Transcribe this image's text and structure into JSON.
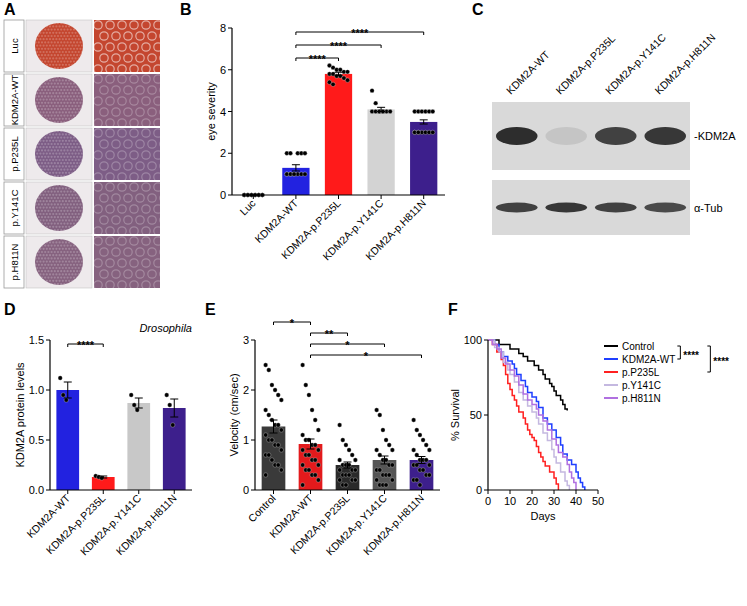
{
  "chart_data": [
    {
      "type": "images",
      "panel": "A",
      "rows": [
        "Luc",
        "KDM2A-WT",
        "p.P235L",
        "p.Y141C",
        "p.H811N"
      ],
      "colors": [
        "#c4462f",
        "#8a5f7d",
        "#7d5d86",
        "#82607f",
        "#86627f"
      ]
    },
    {
      "type": "bar",
      "panel": "B",
      "ylabel": "eye severity",
      "categories": [
        "Luc",
        "KDM2A-WT",
        "KDM2A-p.P235L",
        "KDM2A-p.Y141C",
        "KDM2A-p.H811N"
      ],
      "values": [
        0,
        1.3,
        5.8,
        4.1,
        3.5
      ],
      "errors": [
        0,
        0.15,
        0.08,
        0.1,
        0.1
      ],
      "points": [
        [
          0,
          0,
          0,
          0,
          0,
          0,
          0,
          0,
          0,
          0,
          0,
          0
        ],
        [
          1,
          1,
          1,
          1,
          1,
          1,
          1,
          1,
          1,
          2,
          2,
          2,
          2,
          2
        ],
        [
          6.2,
          6.1,
          6.0,
          6.0,
          5.9,
          5.9,
          5.8,
          5.8,
          5.7,
          5.7,
          5.6,
          5.5,
          5.4,
          5.3
        ],
        [
          5.0,
          4.4,
          4.0,
          4.0,
          4.0,
          4.0,
          4.0,
          4.0,
          4.0,
          4.0
        ],
        [
          4,
          4,
          4,
          4,
          4,
          4,
          3,
          3,
          3,
          3,
          3,
          3,
          3,
          3
        ]
      ],
      "colors": [
        "#000000",
        "#2222e0",
        "#ff1a1a",
        "#d3d3d3",
        "#3d1f8c"
      ],
      "ylim": [
        0,
        8
      ],
      "yticks": [
        0,
        2,
        4,
        6,
        8
      ],
      "annotations": [
        {
          "text": "****",
          "from": "KDM2A-WT",
          "to": "KDM2A-p.P235L"
        },
        {
          "text": "****",
          "from": "KDM2A-WT",
          "to": "KDM2A-p.Y141C"
        },
        {
          "text": "****",
          "from": "KDM2A-WT",
          "to": "KDM2A-p.H811N"
        }
      ]
    },
    {
      "type": "blot",
      "panel": "C",
      "lanes": [
        "KDM2A-WT",
        "KDM2A-p.P235L",
        "KDM2A-p.Y141C",
        "KDM2A-p.H811N"
      ],
      "bands": [
        {
          "label": "-KDM2A",
          "values": [
            0.9,
            0.1,
            0.8,
            0.85
          ]
        },
        {
          "label": "α-Tub",
          "values": [
            0.8,
            0.85,
            0.8,
            0.75
          ]
        }
      ]
    },
    {
      "type": "bar",
      "panel": "D",
      "title": "Drosophila",
      "ylabel": "KDM2A protein levels",
      "categories": [
        "KDM2A-WT",
        "KDM2A-p.P235L",
        "KDM2A-p.Y141C",
        "KDM2A-p.H811N"
      ],
      "values": [
        1.0,
        0.13,
        0.87,
        0.82
      ],
      "errors": [
        0.08,
        0.01,
        0.05,
        0.09
      ],
      "points": [
        [
          1.12,
          0.95,
          0.9
        ],
        [
          0.14,
          0.13,
          0.12
        ],
        [
          0.95,
          0.85,
          0.8
        ],
        [
          0.95,
          0.85,
          0.65
        ]
      ],
      "colors": [
        "#2222e0",
        "#ff1a1a",
        "#c8c8c8",
        "#3d1f8c"
      ],
      "ylim": [
        0,
        1.5
      ],
      "yticks": [
        {
          "value": 0,
          "label": "0.0"
        },
        {
          "value": 0.5,
          "label": "0.5"
        },
        {
          "value": 1,
          "label": "1.0"
        },
        {
          "value": 1.5,
          "label": "1.5"
        }
      ],
      "annotations": [
        {
          "text": "****",
          "from": "KDM2A-WT",
          "to": "KDM2A-p.P235L"
        }
      ]
    },
    {
      "type": "bar",
      "panel": "E",
      "ylabel": "Velocity (cm/sec)",
      "categories": [
        "Control",
        "KDM2A-WT",
        "KDM2A-p.P235L",
        "KDM2A-p.Y141C",
        "KDM2A-p.H811N"
      ],
      "values": [
        1.27,
        0.92,
        0.5,
        0.6,
        0.6
      ],
      "errors": [
        0.13,
        0.1,
        0.06,
        0.08,
        0.07
      ],
      "points": [
        [
          2.5,
          2.4,
          2.1,
          2.0,
          1.9,
          1.8,
          1.6,
          1.5,
          1.4,
          1.3,
          1.3,
          1.2,
          1.1,
          1.0,
          1.0,
          0.9,
          0.9,
          0.8,
          0.7,
          0.7,
          0.6,
          0.5,
          0.5,
          0.4,
          0.3
        ],
        [
          2.5,
          2.1,
          1.9,
          1.6,
          1.4,
          1.2,
          1.1,
          1.0,
          1.0,
          0.9,
          0.9,
          0.8,
          0.8,
          0.7,
          0.7,
          0.6,
          0.6,
          0.5,
          0.5,
          0.4,
          0.4,
          0.3,
          0.3,
          0.2,
          0.1
        ],
        [
          1.3,
          1.0,
          0.9,
          0.8,
          0.7,
          0.6,
          0.6,
          0.5,
          0.5,
          0.5,
          0.4,
          0.4,
          0.4,
          0.3,
          0.3,
          0.3,
          0.2,
          0.2,
          0.2,
          0.1,
          0.1
        ],
        [
          1.6,
          1.5,
          1.2,
          1.0,
          0.9,
          0.8,
          0.8,
          0.7,
          0.6,
          0.6,
          0.5,
          0.5,
          0.4,
          0.4,
          0.3,
          0.3,
          0.3,
          0.2,
          0.2,
          0.1,
          0.1,
          0.1
        ],
        [
          1.4,
          1.2,
          1.1,
          1.0,
          0.9,
          0.8,
          0.8,
          0.7,
          0.6,
          0.6,
          0.6,
          0.5,
          0.5,
          0.5,
          0.4,
          0.4,
          0.3,
          0.3,
          0.2,
          0.2,
          0.1
        ]
      ],
      "colors": [
        "#3a3a3a",
        "#e31a1c",
        "#2a2a2a",
        "#555555",
        "#3d1f8c"
      ],
      "ylim": [
        0,
        3
      ],
      "yticks": [
        0,
        1,
        2,
        3
      ],
      "annotations": [
        {
          "text": "*",
          "from": "KDM2A-WT",
          "to": "KDM2A-p.H811N"
        },
        {
          "text": "*",
          "from": "KDM2A-WT",
          "to": "KDM2A-p.Y141C"
        },
        {
          "text": "**",
          "from": "KDM2A-WT",
          "to": "KDM2A-p.P235L"
        },
        {
          "text": "*",
          "from": "Control",
          "to": "KDM2A-WT"
        }
      ]
    },
    {
      "type": "line",
      "panel": "F",
      "line_style": "step",
      "xlabel": "Days",
      "ylabel": "% Survival",
      "xlim": [
        0,
        50
      ],
      "xticks": [
        0,
        10,
        20,
        30,
        40,
        50
      ],
      "ylim": [
        0,
        100
      ],
      "yticks": [
        0,
        50,
        100
      ],
      "legend": "right",
      "series": [
        {
          "name": "Control",
          "color": "#000000",
          "x": [
            0,
            5,
            10,
            14,
            16,
            18,
            21,
            23,
            25,
            26,
            28,
            29,
            30,
            31,
            33,
            34,
            35,
            36
          ],
          "values": [
            100,
            97,
            94,
            91,
            89,
            86,
            83,
            80,
            77,
            74,
            71,
            69,
            66,
            63,
            60,
            57,
            54,
            53
          ]
        },
        {
          "name": "KDM2A-WT",
          "color": "#1f3fff",
          "x": [
            0,
            3,
            5,
            7,
            9,
            11,
            12,
            13,
            15,
            17,
            18,
            20,
            22,
            23,
            25,
            27,
            29,
            31,
            33,
            34,
            36,
            38,
            40,
            41,
            42,
            43,
            44
          ],
          "values": [
            100,
            97,
            92,
            89,
            86,
            84,
            81,
            77,
            73,
            69,
            65,
            62,
            59,
            55,
            48,
            44,
            40,
            35,
            30,
            24,
            20,
            17,
            12,
            8,
            5,
            2,
            0
          ]
        },
        {
          "name": "p.P235L",
          "color": "#ff2020",
          "x": [
            0,
            2,
            4,
            6,
            7,
            8,
            9,
            10,
            11,
            12,
            13,
            14,
            16,
            17,
            18,
            19,
            20,
            21,
            22,
            23,
            24,
            25,
            26,
            28,
            30,
            31,
            32
          ],
          "values": [
            100,
            97,
            92,
            87,
            83,
            77,
            71,
            67,
            63,
            60,
            56,
            52,
            48,
            44,
            40,
            37,
            35,
            33,
            29,
            25,
            22,
            19,
            16,
            12,
            8,
            4,
            0
          ]
        },
        {
          "name": "p.Y141C",
          "color": "#c4b8e0",
          "x": [
            0,
            3,
            5,
            7,
            9,
            10,
            12,
            14,
            16,
            18,
            20,
            22,
            23,
            25,
            27,
            29,
            30,
            31,
            33,
            35,
            36,
            37
          ],
          "values": [
            100,
            95,
            92,
            85,
            80,
            77,
            72,
            65,
            60,
            56,
            52,
            48,
            44,
            38,
            33,
            27,
            22,
            18,
            12,
            6,
            3,
            0
          ]
        },
        {
          "name": "p.H811N",
          "color": "#b070e0",
          "x": [
            0,
            2,
            4,
            6,
            8,
            10,
            12,
            14,
            16,
            18,
            20,
            22,
            23,
            25,
            27,
            29,
            31,
            32,
            34,
            36,
            37,
            38,
            39,
            40
          ],
          "values": [
            100,
            97,
            94,
            88,
            84,
            80,
            76,
            70,
            64,
            60,
            57,
            54,
            50,
            46,
            40,
            34,
            30,
            25,
            22,
            17,
            12,
            8,
            5,
            0
          ]
        }
      ],
      "annotations": [
        {
          "text": "****",
          "from": "Control",
          "to": "KDM2A-WT"
        },
        {
          "text": "****",
          "from": "Control",
          "to": "p.P235L"
        }
      ]
    }
  ]
}
